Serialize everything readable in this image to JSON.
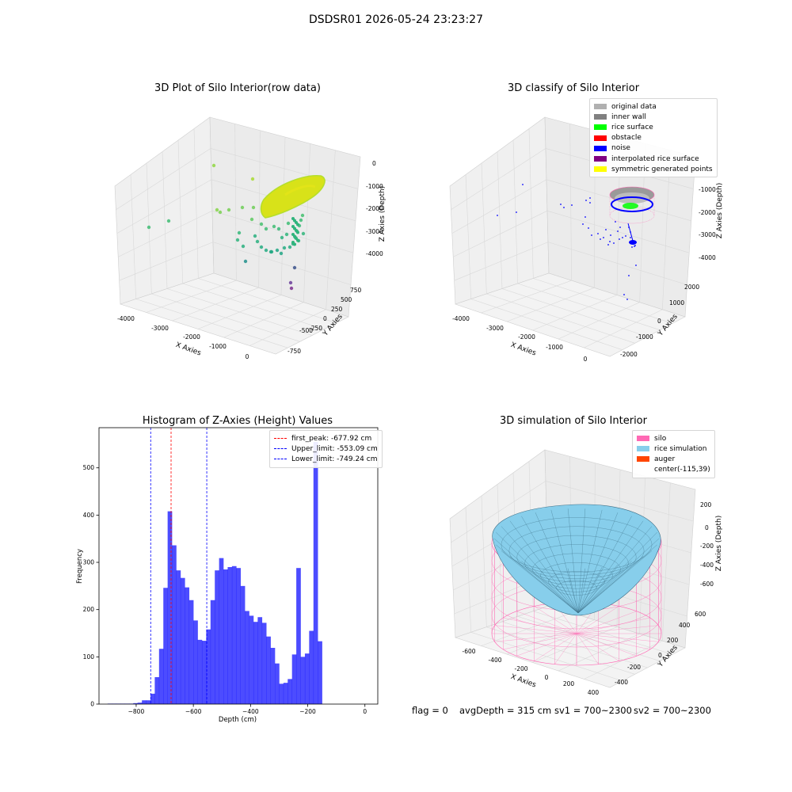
{
  "suptitle": "DSDSR01 2026-05-24 23:23:27",
  "footer": {
    "flag": "flag = 0",
    "avg": "avgDepth = 315 cm",
    "sv1": "sv1 = 700~2300",
    "sv2": "sv2 = 700~2300"
  },
  "colors": {
    "silo": "#ff69b4",
    "rice": "#87ceeb",
    "auger": "#ff4500",
    "hist": "#0000ff",
    "first_peak": "#ff0000",
    "limits": "#0000ff"
  },
  "chart_data": [
    {
      "type": "scatter",
      "projection": "3d",
      "title": "3D Plot of Silo Interior(row data)",
      "xlabel": "X Axies",
      "ylabel": "Y Axies",
      "zlabel": "Z Axies (Depth)",
      "xticks": [
        "-4000",
        "-3000",
        "-2000",
        "-1000",
        "0"
      ],
      "yticks": [
        "-750",
        "-500",
        "-250",
        "0",
        "250",
        "500",
        "750"
      ],
      "zticks": [
        "0",
        "-1000",
        "-2000",
        "-3000",
        "-4000"
      ],
      "colormap": "viridis by depth",
      "grid": true
    },
    {
      "type": "scatter",
      "projection": "3d",
      "title": "3D classify of Silo Interior",
      "xlabel": "X Axies",
      "ylabel": "Y Axies",
      "zlabel": "Z Axies (Depth)",
      "xticks": [
        "-4000",
        "-3000",
        "-2000",
        "-1000",
        "0"
      ],
      "yticks": [
        "-2000",
        "-1000",
        "0",
        "1000",
        "2000"
      ],
      "zticks": [
        "-1000",
        "-2000",
        "-3000",
        "-4000"
      ],
      "legend": [
        {
          "label": "original data",
          "color": "#b0b0b0"
        },
        {
          "label": "inner wall",
          "color": "#808080"
        },
        {
          "label": "rice surface",
          "color": "#00ff00"
        },
        {
          "label": "obstacle",
          "color": "#ff0000"
        },
        {
          "label": "noise",
          "color": "#0000ff"
        },
        {
          "label": "interpolated rice surface",
          "color": "#800080"
        },
        {
          "label": "symmetric generated points",
          "color": "#ffff00"
        }
      ],
      "legend_position": "top-right",
      "grid": true
    },
    {
      "type": "bar",
      "subtype": "histogram",
      "title": "Histogram of Z-Axies (Height) Values",
      "xlabel": "Depth (cm)",
      "ylabel": "Frequency",
      "xlim": [
        -930,
        45
      ],
      "ylim": [
        0,
        585
      ],
      "xticks": [
        -800,
        -600,
        -400,
        -200,
        0
      ],
      "xtick_labels": [
        "−800",
        "−600",
        "−400",
        "−200",
        "0"
      ],
      "yticks": [
        0,
        100,
        200,
        300,
        400,
        500
      ],
      "yticks_labels": [
        "0",
        "100",
        "200",
        "300",
        "400",
        "500"
      ],
      "bin_start": -900,
      "bin_width": 15,
      "counts": [
        1,
        1,
        1,
        1,
        1,
        1,
        2,
        3,
        8,
        8,
        22,
        57,
        117,
        246,
        408,
        336,
        283,
        267,
        247,
        220,
        177,
        136,
        134,
        158,
        220,
        283,
        309,
        285,
        290,
        292,
        288,
        250,
        197,
        187,
        174,
        184,
        172,
        143,
        119,
        86,
        43,
        45,
        53,
        105,
        288,
        100,
        107,
        155,
        555,
        133
      ],
      "vlines": [
        {
          "label": "first_peak: -677.92 cm",
          "x": -677.92,
          "color": "#ff0000"
        },
        {
          "label": "Upper_limit: -553.09 cm",
          "x": -553.09,
          "color": "#0000ff"
        },
        {
          "label": "Lower_limit: -749.24 cm",
          "x": -749.24,
          "color": "#0000ff"
        }
      ],
      "legend_position": "top-right"
    },
    {
      "type": "surface",
      "projection": "3d",
      "title": "3D simulation of Silo Interior",
      "xlabel": "X Axies",
      "ylabel": "Y Axies",
      "zlabel": "Z Axies (Depth)",
      "xticks": [
        "-600",
        "-400",
        "-200",
        "0",
        "200",
        "400"
      ],
      "yticks": [
        "-400",
        "-200",
        "0",
        "200",
        "400",
        "600"
      ],
      "zticks": [
        "200",
        "0",
        "-200",
        "-400",
        "-600"
      ],
      "legend": [
        {
          "label": "silo",
          "color": "#ff69b4"
        },
        {
          "label": "rice simulation",
          "color": "#87ceeb"
        },
        {
          "label": "auger",
          "color": "#ff4500"
        },
        {
          "label": "center(-115,39)",
          "color": ""
        }
      ],
      "legend_position": "top-right"
    }
  ]
}
